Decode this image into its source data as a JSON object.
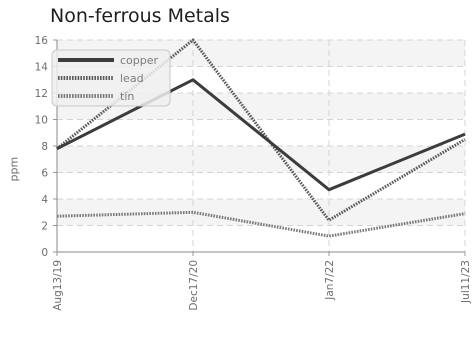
{
  "chart_data": {
    "type": "line",
    "title": "Non-ferrous Metals",
    "xlabel": "",
    "ylabel": "ppm",
    "categories": [
      "Aug13/19",
      "Dec17/20",
      "Jan7/22",
      "Jul11/23"
    ],
    "ylim": [
      0,
      16
    ],
    "yticks": [
      0,
      2,
      4,
      6,
      8,
      10,
      12,
      14,
      16
    ],
    "grid": true,
    "legend_position": "top-left",
    "series": [
      {
        "name": "copper",
        "values": [
          7.8,
          13.0,
          4.7,
          8.9
        ],
        "color": "#3c3c3c",
        "style": "solid"
      },
      {
        "name": "lead",
        "values": [
          7.8,
          16.0,
          2.4,
          8.5
        ],
        "color": "#5a5a5a",
        "style": "dotted"
      },
      {
        "name": "tin",
        "values": [
          2.7,
          3.0,
          1.2,
          2.9
        ],
        "color": "#7a7a7a",
        "style": "dotted"
      }
    ]
  }
}
